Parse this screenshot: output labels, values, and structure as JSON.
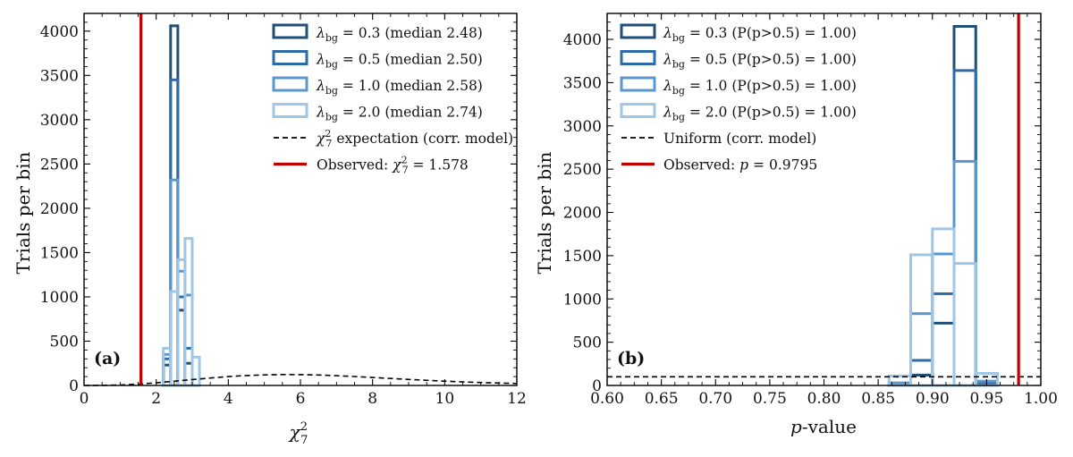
{
  "chart_data": [
    {
      "type": "histogram",
      "panel_tag": "(a)",
      "xlabel_base": "χ",
      "xlabel_sup": "2",
      "xlabel_sub": "7",
      "ylabel": "Trials per bin",
      "xlim": [
        0,
        12
      ],
      "ylim": [
        0,
        4200
      ],
      "xticks": [
        "0",
        "2",
        "4",
        "6",
        "8",
        "10",
        "12"
      ],
      "xtick_values": [
        0,
        2,
        4,
        6,
        8,
        10,
        12
      ],
      "yticks": [
        "0",
        "500",
        "1000",
        "1500",
        "2000",
        "2500",
        "3000",
        "3500",
        "4000"
      ],
      "ytick_values": [
        0,
        500,
        1000,
        1500,
        2000,
        2500,
        3000,
        3500,
        4000
      ],
      "grid": false,
      "legend_position": "top-right",
      "bin_edges": [
        2.2,
        2.4,
        2.6,
        2.8,
        3.0,
        3.2
      ],
      "series": [
        {
          "lambda": "0.3",
          "legend_suffix": "(median 2.48)",
          "color": "#1f4e79",
          "counts": [
            230,
            4060,
            850,
            250,
            0
          ]
        },
        {
          "lambda": "0.5",
          "legend_suffix": "(median 2.50)",
          "color": "#2e6aa8",
          "counts": [
            300,
            3450,
            1000,
            420,
            0
          ]
        },
        {
          "lambda": "1.0",
          "legend_suffix": "(median 2.58)",
          "color": "#5b97cf",
          "counts": [
            350,
            2320,
            1290,
            1020,
            0
          ]
        },
        {
          "lambda": "2.0",
          "legend_suffix": "(median 2.74)",
          "color": "#9fc6e6",
          "counts": [
            420,
            1060,
            1420,
            1660,
            320
          ]
        }
      ],
      "expectation": {
        "legend_label": "expectation (corr. model)",
        "sub": "7",
        "sup": "2",
        "color": "#000000",
        "curve": [
          [
            0,
            0
          ],
          [
            0.5,
            1
          ],
          [
            1,
            5
          ],
          [
            1.5,
            15
          ],
          [
            2,
            30
          ],
          [
            2.5,
            48
          ],
          [
            3,
            66
          ],
          [
            3.5,
            84
          ],
          [
            4,
            100
          ],
          [
            4.5,
            112
          ],
          [
            5,
            119
          ],
          [
            5.5,
            123
          ],
          [
            6,
            122
          ],
          [
            6.5,
            118
          ],
          [
            7,
            110
          ],
          [
            7.5,
            101
          ],
          [
            8,
            90
          ],
          [
            8.5,
            79
          ],
          [
            9,
            68
          ],
          [
            9.5,
            58
          ],
          [
            10,
            48
          ],
          [
            10.5,
            40
          ],
          [
            11,
            33
          ],
          [
            11.5,
            27
          ],
          [
            12,
            22
          ]
        ]
      },
      "observed": {
        "value": 1.578,
        "legend_prefix": "Observed:",
        "legend_value": "= 1.578",
        "sub": "7",
        "sup": "2",
        "color": "#c00000"
      }
    },
    {
      "type": "histogram",
      "panel_tag": "(b)",
      "xlabel_italic": "p",
      "xlabel_rest": "-value",
      "ylabel": "Trials per bin",
      "xlim": [
        0.6,
        1.0
      ],
      "ylim": [
        0,
        4300
      ],
      "xticks": [
        "0.60",
        "0.65",
        "0.70",
        "0.75",
        "0.80",
        "0.85",
        "0.90",
        "0.95",
        "1.00"
      ],
      "xtick_values": [
        0.6,
        0.65,
        0.7,
        0.75,
        0.8,
        0.85,
        0.9,
        0.95,
        1.0
      ],
      "yticks": [
        "0",
        "500",
        "1000",
        "1500",
        "2000",
        "2500",
        "3000",
        "3500",
        "4000"
      ],
      "ytick_values": [
        0,
        500,
        1000,
        1500,
        2000,
        2500,
        3000,
        3500,
        4000
      ],
      "grid": false,
      "legend_position": "top-left",
      "bin_edges": [
        0.86,
        0.88,
        0.9,
        0.92,
        0.94,
        0.96
      ],
      "series": [
        {
          "lambda": "0.3",
          "legend_suffix": "(P(p>0.5) = 1.00)",
          "color": "#1f4e79",
          "counts": [
            0,
            120,
            720,
            4150,
            0
          ]
        },
        {
          "lambda": "0.5",
          "legend_suffix": "(P(p>0.5) = 1.00)",
          "color": "#2e6aa8",
          "counts": [
            0,
            290,
            1060,
            3640,
            20
          ]
        },
        {
          "lambda": "1.0",
          "legend_suffix": "(P(p>0.5) = 1.00)",
          "color": "#5b97cf",
          "counts": [
            30,
            830,
            1520,
            2590,
            50
          ]
        },
        {
          "lambda": "2.0",
          "legend_suffix": "(P(p>0.5) = 1.00)",
          "color": "#9fc6e6",
          "counts": [
            110,
            1510,
            1810,
            1410,
            140
          ]
        }
      ],
      "expectation": {
        "legend_label": "Uniform (corr. model)",
        "value": 100,
        "color": "#000000"
      },
      "observed": {
        "value": 0.9795,
        "legend_prefix": "Observed:",
        "legend_value": "= 0.9795",
        "color": "#c00000"
      }
    }
  ]
}
